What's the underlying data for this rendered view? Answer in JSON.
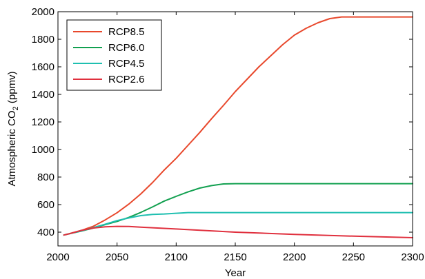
{
  "chart_data": {
    "type": "line",
    "xlabel": "Year",
    "ylabel": {
      "main": "Atmospheric CO",
      "sub": "2",
      "tail": " (ppmv)"
    },
    "xlim": [
      2000,
      2300
    ],
    "ylim": [
      300,
      2000
    ],
    "xticks": [
      2000,
      2050,
      2100,
      2150,
      2200,
      2250,
      2300
    ],
    "yticks": [
      400,
      600,
      800,
      1000,
      1200,
      1400,
      1600,
      1800,
      2000
    ],
    "grid": false,
    "legend_position": "top-left",
    "series": [
      {
        "name": "RCP8.5",
        "color": "#e8482c",
        "points": [
          [
            2005,
            379
          ],
          [
            2010,
            390
          ],
          [
            2020,
            413
          ],
          [
            2030,
            443
          ],
          [
            2040,
            489
          ],
          [
            2050,
            541
          ],
          [
            2060,
            604
          ],
          [
            2070,
            677
          ],
          [
            2080,
            760
          ],
          [
            2090,
            852
          ],
          [
            2100,
            936
          ],
          [
            2110,
            1030
          ],
          [
            2120,
            1124
          ],
          [
            2130,
            1224
          ],
          [
            2140,
            1320
          ],
          [
            2150,
            1420
          ],
          [
            2160,
            1510
          ],
          [
            2170,
            1600
          ],
          [
            2180,
            1680
          ],
          [
            2190,
            1760
          ],
          [
            2200,
            1830
          ],
          [
            2210,
            1880
          ],
          [
            2220,
            1920
          ],
          [
            2230,
            1950
          ],
          [
            2240,
            1962
          ],
          [
            2250,
            1962
          ],
          [
            2300,
            1962
          ]
        ]
      },
      {
        "name": "RCP6.0",
        "color": "#12a050",
        "points": [
          [
            2005,
            379
          ],
          [
            2010,
            389
          ],
          [
            2020,
            408
          ],
          [
            2030,
            430
          ],
          [
            2040,
            455
          ],
          [
            2050,
            478
          ],
          [
            2060,
            507
          ],
          [
            2070,
            543
          ],
          [
            2080,
            583
          ],
          [
            2090,
            626
          ],
          [
            2100,
            660
          ],
          [
            2110,
            692
          ],
          [
            2120,
            720
          ],
          [
            2130,
            738
          ],
          [
            2140,
            750
          ],
          [
            2150,
            752
          ],
          [
            2300,
            752
          ]
        ]
      },
      {
        "name": "RCP4.5",
        "color": "#1fbfb0",
        "points": [
          [
            2005,
            379
          ],
          [
            2010,
            389
          ],
          [
            2020,
            409
          ],
          [
            2030,
            433
          ],
          [
            2040,
            458
          ],
          [
            2050,
            484
          ],
          [
            2060,
            503
          ],
          [
            2070,
            520
          ],
          [
            2080,
            529
          ],
          [
            2090,
            532
          ],
          [
            2100,
            537
          ],
          [
            2110,
            542
          ],
          [
            2120,
            542
          ],
          [
            2150,
            542
          ],
          [
            2300,
            542
          ]
        ]
      },
      {
        "name": "RCP2.6",
        "color": "#e0303e",
        "points": [
          [
            2005,
            379
          ],
          [
            2010,
            389
          ],
          [
            2020,
            413
          ],
          [
            2030,
            430
          ],
          [
            2040,
            439
          ],
          [
            2050,
            442
          ],
          [
            2060,
            441
          ],
          [
            2070,
            436
          ],
          [
            2080,
            432
          ],
          [
            2100,
            423
          ],
          [
            2150,
            400
          ],
          [
            2200,
            384
          ],
          [
            2250,
            371
          ],
          [
            2300,
            360
          ]
        ]
      }
    ]
  }
}
